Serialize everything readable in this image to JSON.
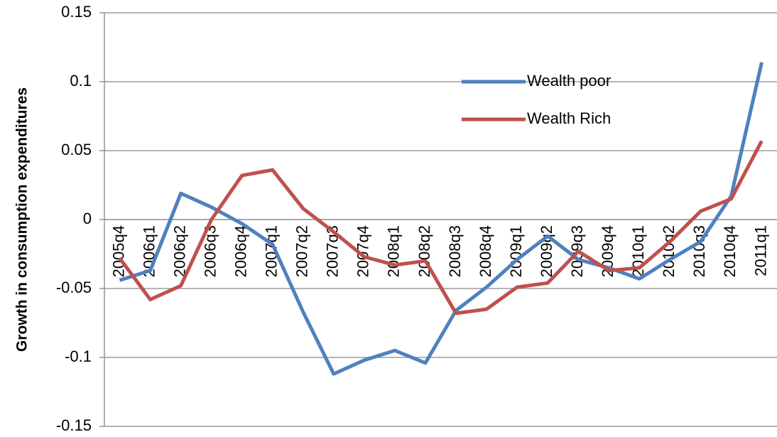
{
  "chart_data": {
    "type": "line",
    "y_label": "Growth in consumption expenditures",
    "categories": [
      "2005q4",
      "2006q1",
      "2006q2",
      "2006q3",
      "2006q4",
      "2007q1",
      "2007q2",
      "2007q3",
      "2007q4",
      "2008q1",
      "2008q2",
      "2008q3",
      "2008q4",
      "2009q1",
      "2009q2",
      "2009q3",
      "2009q4",
      "2010q1",
      "2010q2",
      "2010q3",
      "2010q4",
      "2011q1"
    ],
    "series": [
      {
        "name": "Wealth poor",
        "color": "#4f81bd",
        "values": [
          -0.044,
          -0.037,
          0.019,
          0.009,
          -0.003,
          -0.018,
          -0.067,
          -0.112,
          -0.102,
          -0.095,
          -0.104,
          -0.066,
          -0.049,
          -0.029,
          -0.012,
          -0.029,
          -0.035,
          -0.043,
          -0.029,
          -0.016,
          0.017,
          0.114
        ]
      },
      {
        "name": "Wealth Rich",
        "color": "#c0504d",
        "values": [
          -0.028,
          -0.058,
          -0.048,
          0.0,
          0.032,
          0.036,
          0.008,
          -0.009,
          -0.027,
          -0.033,
          -0.03,
          -0.068,
          -0.065,
          -0.049,
          -0.046,
          -0.023,
          -0.037,
          -0.035,
          -0.016,
          0.006,
          0.015,
          0.057
        ]
      }
    ],
    "ylim": [
      -0.15,
      0.15
    ],
    "yticks": [
      -0.15,
      -0.1,
      -0.05,
      0,
      0.05,
      0.1,
      0.15
    ],
    "grid": true
  }
}
